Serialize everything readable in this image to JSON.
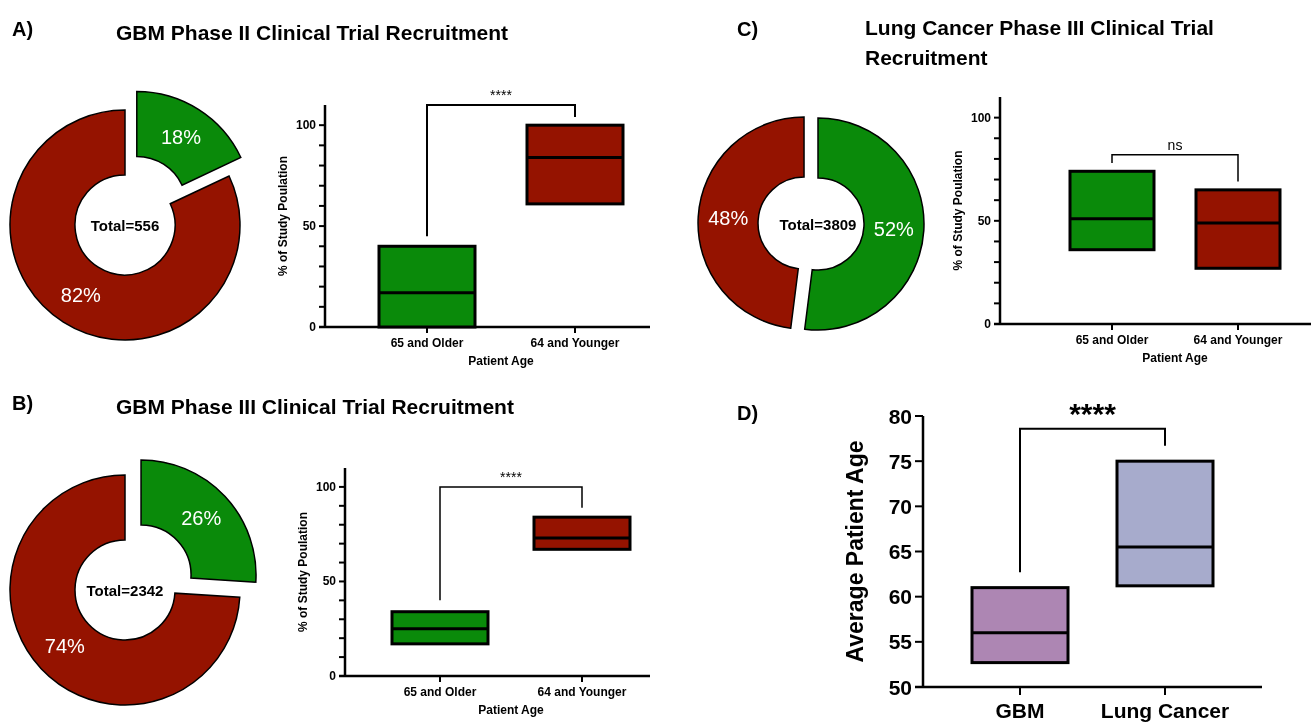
{
  "chart_data": [
    {
      "type": "donut",
      "title": "GBM Phase II Clinical Trial Recruitment",
      "categories": [
        null,
        null
      ],
      "values": [
        18,
        82
      ],
      "colors": [
        "#0a8a0a",
        "#951300"
      ],
      "value_labels": [
        "18%",
        "82%"
      ],
      "annotations": [
        "A)",
        "Total=556"
      ]
    },
    {
      "type": "box",
      "categories": [
        "65 and Older",
        "64 and Younger"
      ],
      "colors": [
        "#0a8a0a",
        "#951300"
      ],
      "boxes": [
        {
          "low": 0,
          "q1": 0,
          "median": 17,
          "q3": 40,
          "high": 40
        },
        {
          "low": 61,
          "q1": 61,
          "median": 84,
          "q3": 100,
          "high": 100
        }
      ],
      "xlabel": "Patient Age",
      "ylabel": "% of Study Poulation",
      "ylim": [
        0,
        110
      ],
      "yticks": [
        0,
        {
          "value": 10,
          "label": null
        },
        {
          "value": 20,
          "label": null
        },
        {
          "value": 30,
          "label": null
        },
        {
          "value": 40,
          "label": null
        },
        50,
        {
          "value": 60,
          "label": null
        },
        {
          "value": 70,
          "label": null
        },
        {
          "value": 80,
          "label": null
        },
        {
          "value": 90,
          "label": null
        },
        100
      ],
      "annotations": [
        "****"
      ]
    },
    {
      "type": "donut",
      "title": "Lung Cancer Phase III Clinical Trial Recruitment",
      "categories": [
        null,
        null
      ],
      "values": [
        52,
        48
      ],
      "colors": [
        "#0a8a0a",
        "#951300"
      ],
      "value_labels": [
        "52%",
        "48%"
      ],
      "annotations": [
        "C)",
        "Total=3809"
      ]
    },
    {
      "type": "box",
      "categories": [
        "65 and Older",
        "64 and Younger"
      ],
      "colors": [
        "#0a8a0a",
        "#951300"
      ],
      "boxes": [
        {
          "low": 36,
          "q1": 36,
          "median": 51,
          "q3": 74,
          "high": 74
        },
        {
          "low": 27,
          "q1": 27,
          "median": 49,
          "q3": 65,
          "high": 65
        }
      ],
      "xlabel": "Patient Age",
      "ylabel": "% of Study Poulation",
      "ylim": [
        0,
        110
      ],
      "yticks": [
        0,
        {
          "value": 10,
          "label": null
        },
        {
          "value": 20,
          "label": null
        },
        {
          "value": 30,
          "label": null
        },
        {
          "value": 40,
          "label": null
        },
        50,
        {
          "value": 60,
          "label": null
        },
        {
          "value": 70,
          "label": null
        },
        {
          "value": 80,
          "label": null
        },
        {
          "value": 90,
          "label": null
        },
        100
      ],
      "annotations": [
        "ns"
      ]
    },
    {
      "type": "donut",
      "title": "GBM Phase III Clinical Trial Recruitment",
      "categories": [
        null,
        null
      ],
      "values": [
        26,
        74
      ],
      "colors": [
        "#0a8a0a",
        "#951300"
      ],
      "value_labels": [
        "26%",
        "74%"
      ],
      "annotations": [
        "B)",
        "Total=2342"
      ]
    },
    {
      "type": "box",
      "categories": [
        "65 and Older",
        "64 and Younger"
      ],
      "colors": [
        "#0a8a0a",
        "#951300"
      ],
      "boxes": [
        {
          "low": 17,
          "q1": 17,
          "median": 25,
          "q3": 34,
          "high": 34
        },
        {
          "low": 67,
          "q1": 67,
          "median": 73,
          "q3": 84,
          "high": 84
        }
      ],
      "xlabel": "Patient Age",
      "ylabel": "% of Study Poulation",
      "ylim": [
        0,
        110
      ],
      "yticks": [
        0,
        {
          "value": 10,
          "label": null
        },
        {
          "value": 20,
          "label": null
        },
        {
          "value": 30,
          "label": null
        },
        {
          "value": 40,
          "label": null
        },
        50,
        {
          "value": 60,
          "label": null
        },
        {
          "value": 70,
          "label": null
        },
        {
          "value": 80,
          "label": null
        },
        {
          "value": 90,
          "label": null
        },
        100
      ],
      "annotations": [
        "****"
      ]
    },
    {
      "type": "box",
      "categories": [
        "GBM",
        "Lung Cancer"
      ],
      "colors": [
        "#ad86b3",
        "#a7abcc"
      ],
      "boxes": [
        {
          "low": 52.7,
          "q1": 52.7,
          "median": 56,
          "q3": 61,
          "high": 61
        },
        {
          "low": 61.2,
          "q1": 61.2,
          "median": 65.5,
          "q3": 75,
          "high": 75
        }
      ],
      "ylabel": "Average Patient Age",
      "ylim": [
        50,
        80
      ],
      "yticks": [
        50,
        55,
        60,
        65,
        70,
        75,
        80
      ],
      "annotations": [
        "D)",
        "****"
      ]
    }
  ]
}
